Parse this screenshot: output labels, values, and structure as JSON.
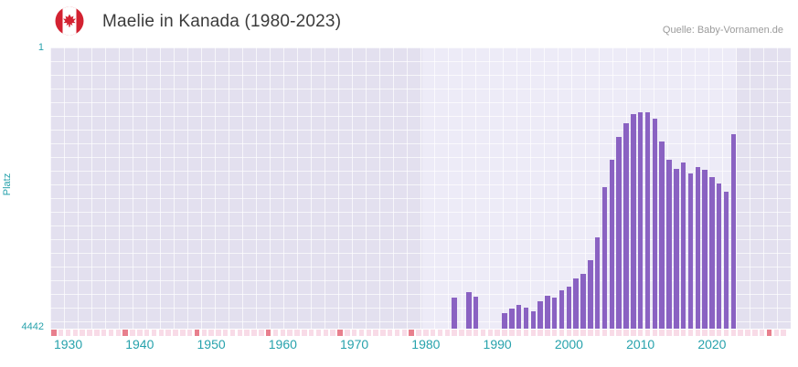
{
  "header": {
    "title": "Maelie in Kanada (1980-2023)",
    "source": "Quelle: Baby-Vornamen.de",
    "flag": "canada-flag-icon"
  },
  "colors": {
    "bar": "#8a62c2",
    "plot_bg": "#e3e0ef",
    "plot_bg_highlight": "#edebf7",
    "axis_text": "#27a2ac",
    "marker_light": "#f8dbe7",
    "marker_accent": "#e87f8d",
    "title_text": "#3b3b3b",
    "source_text": "#9b9b9b"
  },
  "chart_data": {
    "type": "bar",
    "title": "Maelie in Kanada (1980-2023)",
    "xlabel": "",
    "ylabel": "Platz",
    "y_axis": {
      "min": 1,
      "max": 4442,
      "inverted": true,
      "top_tick_label": "1",
      "bottom_tick_label": "4442"
    },
    "x_axis": {
      "domain_min": 1927.5,
      "domain_max": 2031,
      "tick_labels": [
        "1930",
        "1940",
        "1950",
        "1960",
        "1970",
        "1980",
        "1990",
        "2000",
        "2010",
        "2020"
      ],
      "tick_years": [
        1930,
        1940,
        1950,
        1960,
        1970,
        1980,
        1990,
        2000,
        2010,
        2020
      ]
    },
    "highlight_year_range": [
      1979.5,
      2023.5
    ],
    "grid": true,
    "legend": false,
    "series": [
      {
        "year": 1984,
        "rank": 3950
      },
      {
        "year": 1986,
        "rank": 3860
      },
      {
        "year": 1987,
        "rank": 3940
      },
      {
        "year": 1991,
        "rank": 4200
      },
      {
        "year": 1992,
        "rank": 4120
      },
      {
        "year": 1993,
        "rank": 4060
      },
      {
        "year": 1994,
        "rank": 4110
      },
      {
        "year": 1995,
        "rank": 4170
      },
      {
        "year": 1996,
        "rank": 4010
      },
      {
        "year": 1997,
        "rank": 3920
      },
      {
        "year": 1998,
        "rank": 3950
      },
      {
        "year": 1999,
        "rank": 3840
      },
      {
        "year": 2000,
        "rank": 3780
      },
      {
        "year": 2001,
        "rank": 3650
      },
      {
        "year": 2002,
        "rank": 3580
      },
      {
        "year": 2003,
        "rank": 3360
      },
      {
        "year": 2004,
        "rank": 3000
      },
      {
        "year": 2005,
        "rank": 2210
      },
      {
        "year": 2006,
        "rank": 1770
      },
      {
        "year": 2007,
        "rank": 1410
      },
      {
        "year": 2008,
        "rank": 1200
      },
      {
        "year": 2009,
        "rank": 1050
      },
      {
        "year": 2010,
        "rank": 1020
      },
      {
        "year": 2011,
        "rank": 1020
      },
      {
        "year": 2012,
        "rank": 1130
      },
      {
        "year": 2013,
        "rank": 1490
      },
      {
        "year": 2014,
        "rank": 1770
      },
      {
        "year": 2015,
        "rank": 1920
      },
      {
        "year": 2016,
        "rank": 1820
      },
      {
        "year": 2017,
        "rank": 1990
      },
      {
        "year": 2018,
        "rank": 1890
      },
      {
        "year": 2019,
        "rank": 1930
      },
      {
        "year": 2020,
        "rank": 2050
      },
      {
        "year": 2021,
        "rank": 2150
      },
      {
        "year": 2022,
        "rank": 2280
      },
      {
        "year": 2023,
        "rank": 1370
      }
    ],
    "no_rank_marker_accent_years": [
      1928,
      1938,
      1948,
      1958,
      1968,
      1978,
      2028
    ],
    "no_rank_marker_row_years": [
      1928,
      2030
    ]
  }
}
